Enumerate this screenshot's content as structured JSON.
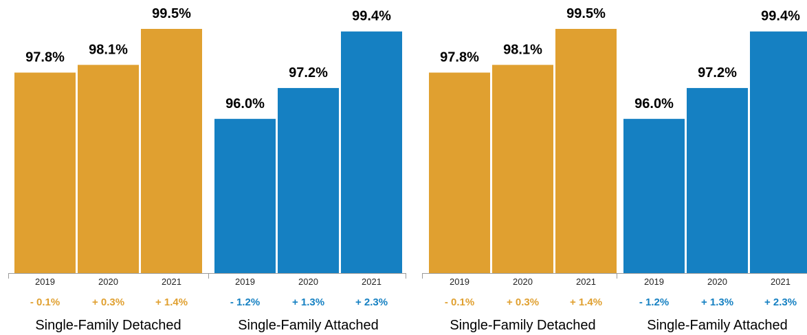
{
  "chart_data": [
    {
      "type": "bar",
      "panels": [
        {
          "name": "Single-Family Detached",
          "color": "#E0A030",
          "categories": [
            "2019",
            "2020",
            "2021"
          ],
          "values": [
            97.8,
            98.1,
            99.5
          ],
          "value_labels": [
            "97.8%",
            "98.1%",
            "99.5%"
          ],
          "changes": [
            "- 0.1%",
            "+ 0.3%",
            "+ 1.4%"
          ]
        },
        {
          "name": "Single-Family Attached",
          "color": "#1580C2",
          "categories": [
            "2019",
            "2020",
            "2021"
          ],
          "values": [
            96.0,
            97.2,
            99.4
          ],
          "value_labels": [
            "96.0%",
            "97.2%",
            "99.4%"
          ],
          "changes": [
            "- 1.2%",
            "+ 1.3%",
            "+ 2.3%"
          ]
        }
      ]
    },
    {
      "type": "bar",
      "panels": [
        {
          "name": "Single-Family Detached",
          "color": "#E0A030",
          "categories": [
            "2019",
            "2020",
            "2021"
          ],
          "values": [
            97.8,
            98.1,
            99.5
          ],
          "value_labels": [
            "97.8%",
            "98.1%",
            "99.5%"
          ],
          "changes": [
            "- 0.1%",
            "+ 0.3%",
            "+ 1.4%"
          ]
        },
        {
          "name": "Single-Family Attached",
          "color": "#1580C2",
          "categories": [
            "2019",
            "2020",
            "2021"
          ],
          "values": [
            96.0,
            97.2,
            99.4
          ],
          "value_labels": [
            "96.0%",
            "97.2%",
            "99.4%"
          ],
          "changes": [
            "- 1.2%",
            "+ 1.3%",
            "+ 2.3%"
          ]
        }
      ]
    }
  ]
}
